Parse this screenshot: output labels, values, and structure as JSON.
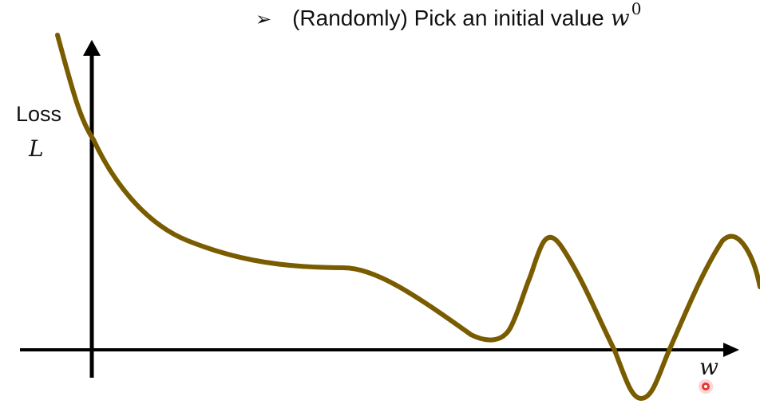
{
  "bullet": {
    "marker": "➢",
    "text": "(Randomly) Pick an initial value",
    "variable": "w",
    "superscript": "0"
  },
  "axes": {
    "y_label": "Loss",
    "y_variable": "L",
    "x_variable": "w"
  },
  "colors": {
    "curve": "#7a5c00",
    "axis": "#000000",
    "pointer": "#e53935"
  }
}
